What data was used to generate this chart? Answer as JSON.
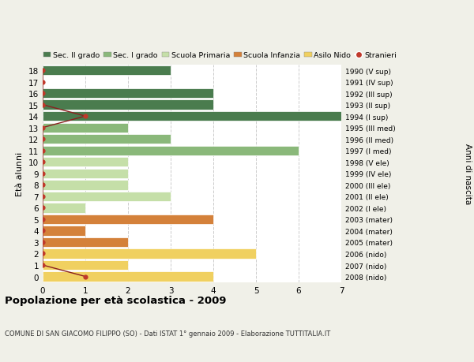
{
  "ages": [
    18,
    17,
    16,
    15,
    14,
    13,
    12,
    11,
    10,
    9,
    8,
    7,
    6,
    5,
    4,
    3,
    2,
    1,
    0
  ],
  "right_labels": [
    "1990 (V sup)",
    "1991 (IV sup)",
    "1992 (III sup)",
    "1993 (II sup)",
    "1994 (I sup)",
    "1995 (III med)",
    "1996 (II med)",
    "1997 (I med)",
    "1998 (V ele)",
    "1999 (IV ele)",
    "2000 (III ele)",
    "2001 (II ele)",
    "2002 (I ele)",
    "2003 (mater)",
    "2004 (mater)",
    "2005 (mater)",
    "2006 (nido)",
    "2007 (nido)",
    "2008 (nido)"
  ],
  "bar_values": [
    3,
    0,
    4,
    4,
    7,
    2,
    3,
    6,
    2,
    2,
    2,
    3,
    1,
    4,
    1,
    2,
    5,
    2,
    4
  ],
  "bar_colors": [
    "#4a7c4e",
    "#4a7c4e",
    "#4a7c4e",
    "#4a7c4e",
    "#4a7c4e",
    "#8ab87a",
    "#8ab87a",
    "#8ab87a",
    "#c5dfa8",
    "#c5dfa8",
    "#c5dfa8",
    "#c5dfa8",
    "#c5dfa8",
    "#d4813a",
    "#d4813a",
    "#d4813a",
    "#f0d060",
    "#f0d060",
    "#f0d060"
  ],
  "stranieri_ages": [
    18,
    17,
    16,
    15,
    14,
    13,
    12,
    11,
    10,
    9,
    8,
    7,
    6,
    5,
    4,
    3,
    2,
    1,
    0
  ],
  "stranieri_values": [
    0,
    0,
    0,
    0,
    1,
    0,
    0,
    0,
    0,
    0,
    0,
    0,
    0,
    0,
    0,
    0,
    0,
    0,
    1
  ],
  "legend_labels": [
    "Sec. II grado",
    "Sec. I grado",
    "Scuola Primaria",
    "Scuola Infanzia",
    "Asilo Nido",
    "Stranieri"
  ],
  "legend_colors": [
    "#4a7c4e",
    "#8ab87a",
    "#c5dfa8",
    "#d4813a",
    "#f0d060",
    "#c0392b"
  ],
  "title": "Popolazione per età scolastica - 2009",
  "subtitle": "COMUNE DI SAN GIACOMO FILIPPO (SO) - Dati ISTAT 1° gennaio 2009 - Elaborazione TUTTITALIA.IT",
  "ylabel": "Età alunni",
  "ylabel_right": "Anni di nascita",
  "xlim": [
    0,
    7
  ],
  "bg_color": "#f0f0e8",
  "plot_bg_color": "#ffffff",
  "grid_color": "#cccccc",
  "stranieri_line_color": "#8b2020",
  "stranieri_dot_color": "#c0392b"
}
